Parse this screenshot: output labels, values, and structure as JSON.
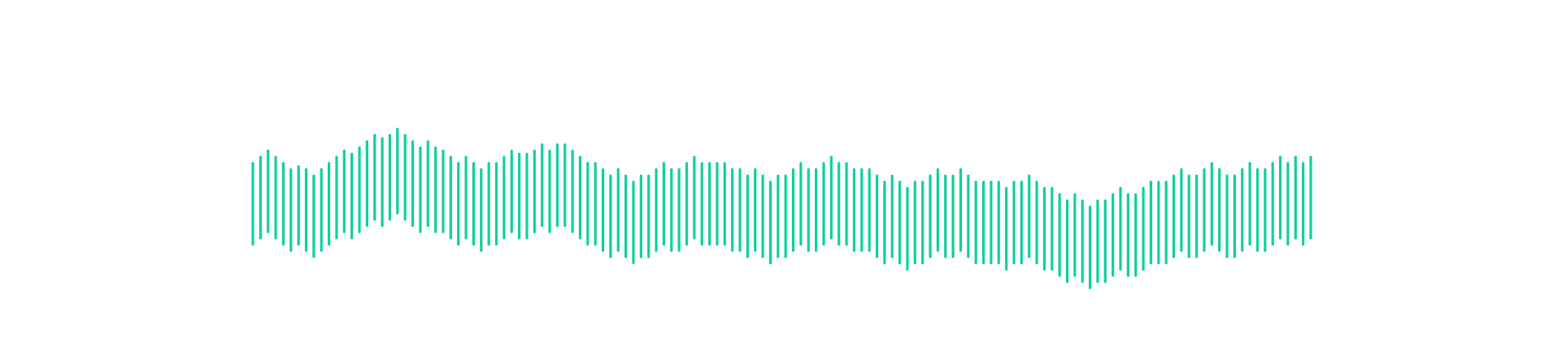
{
  "colors": {
    "bar": "#10cfa0",
    "background": "#ffffff"
  },
  "chart_data": {
    "type": "bar",
    "subtype": "floating-range-bars",
    "title": "",
    "xlabel": "",
    "ylabel": "",
    "axes_visible": false,
    "grid": false,
    "legend": "none",
    "ylim": [
      0,
      1
    ],
    "series": [
      {
        "ranges": [
          [
            0.32,
            0.58
          ],
          [
            0.34,
            0.6
          ],
          [
            0.36,
            0.62
          ],
          [
            0.34,
            0.6
          ],
          [
            0.32,
            0.58
          ],
          [
            0.3,
            0.56
          ],
          [
            0.32,
            0.57
          ],
          [
            0.3,
            0.56
          ],
          [
            0.28,
            0.54
          ],
          [
            0.3,
            0.56
          ],
          [
            0.32,
            0.58
          ],
          [
            0.34,
            0.6
          ],
          [
            0.36,
            0.62
          ],
          [
            0.34,
            0.61
          ],
          [
            0.36,
            0.63
          ],
          [
            0.38,
            0.65
          ],
          [
            0.4,
            0.67
          ],
          [
            0.38,
            0.66
          ],
          [
            0.4,
            0.67
          ],
          [
            0.42,
            0.69
          ],
          [
            0.4,
            0.67
          ],
          [
            0.38,
            0.65
          ],
          [
            0.36,
            0.63
          ],
          [
            0.38,
            0.65
          ],
          [
            0.36,
            0.63
          ],
          [
            0.36,
            0.62
          ],
          [
            0.34,
            0.6
          ],
          [
            0.32,
            0.58
          ],
          [
            0.34,
            0.6
          ],
          [
            0.32,
            0.58
          ],
          [
            0.3,
            0.56
          ],
          [
            0.32,
            0.58
          ],
          [
            0.32,
            0.58
          ],
          [
            0.34,
            0.6
          ],
          [
            0.36,
            0.62
          ],
          [
            0.34,
            0.61
          ],
          [
            0.34,
            0.61
          ],
          [
            0.36,
            0.62
          ],
          [
            0.38,
            0.64
          ],
          [
            0.36,
            0.62
          ],
          [
            0.38,
            0.64
          ],
          [
            0.38,
            0.64
          ],
          [
            0.36,
            0.62
          ],
          [
            0.34,
            0.6
          ],
          [
            0.32,
            0.58
          ],
          [
            0.32,
            0.58
          ],
          [
            0.3,
            0.56
          ],
          [
            0.28,
            0.54
          ],
          [
            0.3,
            0.56
          ],
          [
            0.28,
            0.54
          ],
          [
            0.26,
            0.52
          ],
          [
            0.28,
            0.54
          ],
          [
            0.28,
            0.54
          ],
          [
            0.3,
            0.56
          ],
          [
            0.32,
            0.58
          ],
          [
            0.3,
            0.56
          ],
          [
            0.3,
            0.56
          ],
          [
            0.32,
            0.58
          ],
          [
            0.34,
            0.6
          ],
          [
            0.32,
            0.58
          ],
          [
            0.32,
            0.58
          ],
          [
            0.32,
            0.58
          ],
          [
            0.32,
            0.58
          ],
          [
            0.3,
            0.56
          ],
          [
            0.3,
            0.56
          ],
          [
            0.28,
            0.54
          ],
          [
            0.3,
            0.56
          ],
          [
            0.28,
            0.54
          ],
          [
            0.26,
            0.52
          ],
          [
            0.28,
            0.54
          ],
          [
            0.28,
            0.54
          ],
          [
            0.3,
            0.56
          ],
          [
            0.32,
            0.58
          ],
          [
            0.3,
            0.56
          ],
          [
            0.3,
            0.56
          ],
          [
            0.32,
            0.58
          ],
          [
            0.34,
            0.6
          ],
          [
            0.32,
            0.58
          ],
          [
            0.32,
            0.58
          ],
          [
            0.3,
            0.56
          ],
          [
            0.3,
            0.56
          ],
          [
            0.3,
            0.56
          ],
          [
            0.28,
            0.54
          ],
          [
            0.26,
            0.52
          ],
          [
            0.28,
            0.54
          ],
          [
            0.26,
            0.52
          ],
          [
            0.24,
            0.5
          ],
          [
            0.26,
            0.52
          ],
          [
            0.26,
            0.52
          ],
          [
            0.28,
            0.54
          ],
          [
            0.3,
            0.56
          ],
          [
            0.28,
            0.54
          ],
          [
            0.28,
            0.54
          ],
          [
            0.3,
            0.56
          ],
          [
            0.28,
            0.54
          ],
          [
            0.26,
            0.52
          ],
          [
            0.26,
            0.52
          ],
          [
            0.26,
            0.52
          ],
          [
            0.26,
            0.52
          ],
          [
            0.24,
            0.5
          ],
          [
            0.26,
            0.52
          ],
          [
            0.26,
            0.52
          ],
          [
            0.28,
            0.54
          ],
          [
            0.26,
            0.52
          ],
          [
            0.24,
            0.5
          ],
          [
            0.24,
            0.5
          ],
          [
            0.22,
            0.48
          ],
          [
            0.2,
            0.46
          ],
          [
            0.22,
            0.48
          ],
          [
            0.2,
            0.46
          ],
          [
            0.18,
            0.44
          ],
          [
            0.2,
            0.46
          ],
          [
            0.2,
            0.46
          ],
          [
            0.22,
            0.48
          ],
          [
            0.24,
            0.5
          ],
          [
            0.22,
            0.48
          ],
          [
            0.22,
            0.48
          ],
          [
            0.24,
            0.5
          ],
          [
            0.26,
            0.52
          ],
          [
            0.26,
            0.52
          ],
          [
            0.26,
            0.52
          ],
          [
            0.28,
            0.54
          ],
          [
            0.3,
            0.56
          ],
          [
            0.28,
            0.54
          ],
          [
            0.28,
            0.54
          ],
          [
            0.3,
            0.56
          ],
          [
            0.32,
            0.58
          ],
          [
            0.3,
            0.56
          ],
          [
            0.28,
            0.54
          ],
          [
            0.28,
            0.54
          ],
          [
            0.3,
            0.56
          ],
          [
            0.32,
            0.58
          ],
          [
            0.3,
            0.56
          ],
          [
            0.3,
            0.56
          ],
          [
            0.32,
            0.58
          ],
          [
            0.34,
            0.6
          ],
          [
            0.32,
            0.58
          ],
          [
            0.34,
            0.6
          ],
          [
            0.32,
            0.58
          ],
          [
            0.34,
            0.6
          ]
        ]
      }
    ]
  }
}
